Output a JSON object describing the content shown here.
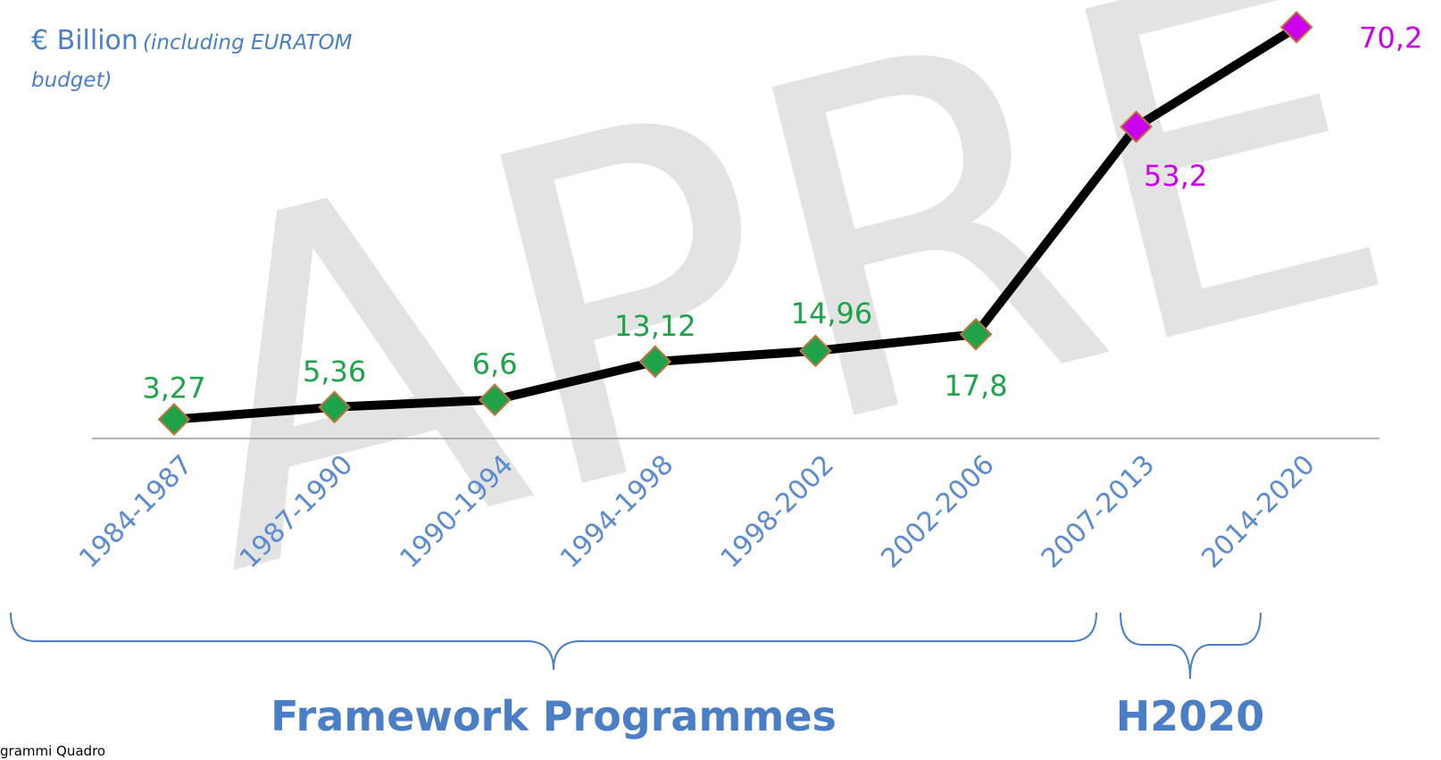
{
  "chart_data": {
    "type": "line",
    "title": "€ Billion",
    "subtitle": "(including EURATOM budget)",
    "categories": [
      "1984-1987",
      "1987-1990",
      "1990-1994",
      "1994-1998",
      "1998-2002",
      "2002-2006",
      "2007-2013",
      "2014-2020"
    ],
    "series": [
      {
        "name": null,
        "color": "#000000",
        "values": [
          3.27,
          5.36,
          6.6,
          13.12,
          14.96,
          17.8,
          53.2,
          70.2
        ],
        "value_labels": [
          "3,27",
          "5,36",
          "6,6",
          "13,12",
          "14,96",
          "17,8",
          "53,2",
          "70,2"
        ],
        "point_colors": [
          "#1fa34a",
          "#1fa34a",
          "#1fa34a",
          "#1fa34a",
          "#1fa34a",
          "#1fa34a",
          "#cc00ee",
          "#cc00ee"
        ]
      }
    ],
    "ylim": [
      0,
      75
    ],
    "annotations": [
      "Framework Programmes",
      "H2020",
      "APRE",
      "grammi Quadro"
    ]
  }
}
